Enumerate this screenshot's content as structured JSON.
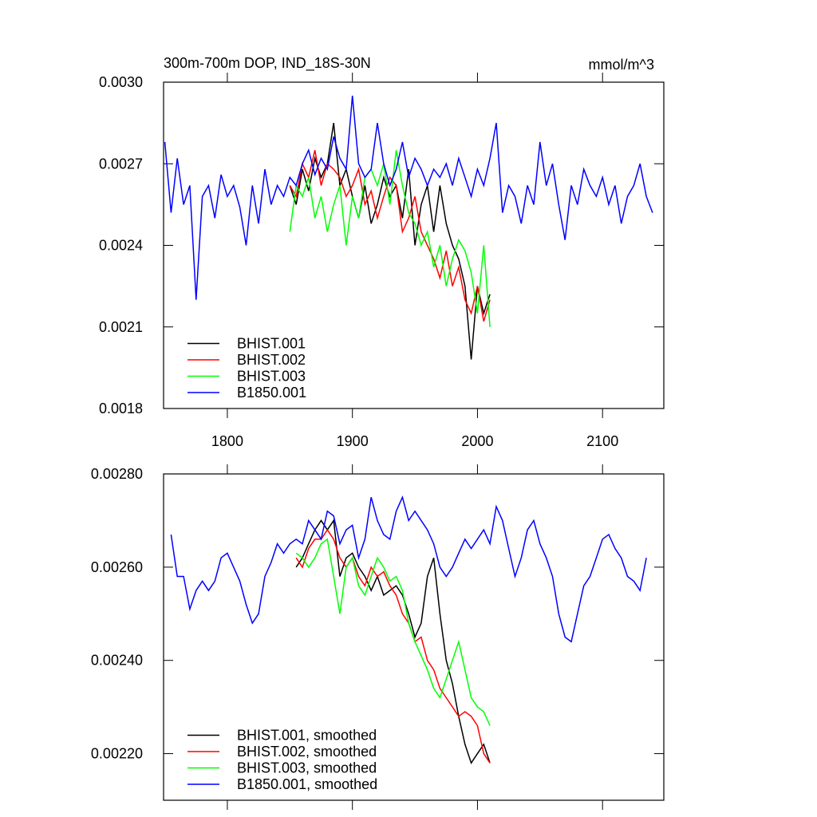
{
  "chart_data": [
    {
      "type": "line",
      "title": "300m-700m DOP, IND_18S-30N",
      "subtitle": "mmol/m^3",
      "xlim": [
        1749,
        2149
      ],
      "xticks": [
        1800,
        1900,
        2000,
        2100
      ],
      "ylim": [
        0.0018,
        0.003
      ],
      "yticks": [
        {
          "value": 0.0018,
          "label": "0.0018"
        },
        {
          "value": 0.0021,
          "label": "0.0021"
        },
        {
          "value": 0.0024,
          "label": "0.0024"
        },
        {
          "value": 0.0027,
          "label": "0.0027"
        },
        {
          "value": 0.003,
          "label": "0.0030"
        }
      ],
      "legend": "lower left",
      "series": [
        {
          "name": "BHIST.001",
          "color": "#000000",
          "x": [
            1850,
            1855,
            1860,
            1865,
            1870,
            1875,
            1880,
            1885,
            1890,
            1895,
            1900,
            1905,
            1910,
            1915,
            1920,
            1925,
            1930,
            1935,
            1940,
            1945,
            1950,
            1955,
            1960,
            1965,
            1970,
            1975,
            1980,
            1985,
            1990,
            1995,
            2000,
            2005,
            2010
          ],
          "values": [
            0.00262,
            0.00255,
            0.00268,
            0.0026,
            0.00272,
            0.00265,
            0.0027,
            0.00285,
            0.00262,
            0.00268,
            0.00258,
            0.0025,
            0.00262,
            0.00248,
            0.00255,
            0.00265,
            0.00258,
            0.00262,
            0.0025,
            0.00268,
            0.0024,
            0.00255,
            0.00262,
            0.00245,
            0.00262,
            0.00248,
            0.0024,
            0.00235,
            0.00225,
            0.00198,
            0.00225,
            0.00215,
            0.00222
          ]
        },
        {
          "name": "BHIST.002",
          "color": "#ff0000",
          "x": [
            1850,
            1855,
            1860,
            1865,
            1870,
            1875,
            1880,
            1885,
            1890,
            1895,
            1900,
            1905,
            1910,
            1915,
            1920,
            1925,
            1930,
            1935,
            1940,
            1945,
            1950,
            1955,
            1960,
            1965,
            1970,
            1975,
            1980,
            1985,
            1990,
            1995,
            2000,
            2005,
            2010
          ],
          "values": [
            0.00262,
            0.00258,
            0.0027,
            0.00265,
            0.00275,
            0.00262,
            0.0027,
            0.00268,
            0.00265,
            0.00258,
            0.00262,
            0.00268,
            0.00255,
            0.0026,
            0.0025,
            0.00258,
            0.00265,
            0.00262,
            0.00245,
            0.0025,
            0.00258,
            0.00245,
            0.0024,
            0.00235,
            0.00228,
            0.00238,
            0.00225,
            0.00232,
            0.0022,
            0.00215,
            0.00225,
            0.00212,
            0.0022
          ]
        },
        {
          "name": "BHIST.003",
          "color": "#00ff00",
          "x": [
            1850,
            1855,
            1860,
            1865,
            1870,
            1875,
            1880,
            1885,
            1890,
            1895,
            1900,
            1905,
            1910,
            1915,
            1920,
            1925,
            1930,
            1935,
            1940,
            1945,
            1950,
            1955,
            1960,
            1965,
            1970,
            1975,
            1980,
            1985,
            1990,
            1995,
            2000,
            2005,
            2010
          ],
          "values": [
            0.00245,
            0.00262,
            0.00258,
            0.00265,
            0.0025,
            0.00258,
            0.00245,
            0.00255,
            0.00262,
            0.0024,
            0.00258,
            0.0025,
            0.00265,
            0.00268,
            0.00262,
            0.0027,
            0.00255,
            0.00275,
            0.00262,
            0.00252,
            0.00248,
            0.0024,
            0.00245,
            0.00232,
            0.0024,
            0.00225,
            0.00235,
            0.00242,
            0.00238,
            0.0023,
            0.00215,
            0.0024,
            0.0021
          ]
        },
        {
          "name": "B1850.001",
          "color": "#0000ff",
          "x": [
            1750,
            1755,
            1760,
            1765,
            1770,
            1775,
            1780,
            1785,
            1790,
            1795,
            1800,
            1805,
            1810,
            1815,
            1820,
            1825,
            1830,
            1835,
            1840,
            1845,
            1850,
            1855,
            1860,
            1865,
            1870,
            1875,
            1880,
            1885,
            1890,
            1895,
            1900,
            1905,
            1910,
            1915,
            1920,
            1925,
            1930,
            1935,
            1940,
            1945,
            1950,
            1955,
            1960,
            1965,
            1970,
            1975,
            1980,
            1985,
            1990,
            1995,
            2000,
            2005,
            2010,
            2015,
            2020,
            2025,
            2030,
            2035,
            2040,
            2045,
            2050,
            2055,
            2060,
            2065,
            2070,
            2075,
            2080,
            2085,
            2090,
            2095,
            2100,
            2105,
            2110,
            2115,
            2120,
            2125,
            2130,
            2135,
            2140
          ],
          "values": [
            0.00278,
            0.00252,
            0.00272,
            0.00255,
            0.00262,
            0.0022,
            0.00258,
            0.00262,
            0.0025,
            0.00266,
            0.00258,
            0.00262,
            0.00254,
            0.0024,
            0.00262,
            0.00248,
            0.00268,
            0.00255,
            0.00262,
            0.00258,
            0.00265,
            0.00262,
            0.0027,
            0.00275,
            0.00266,
            0.00272,
            0.00268,
            0.0028,
            0.00272,
            0.00268,
            0.00295,
            0.0027,
            0.00265,
            0.00268,
            0.00285,
            0.0027,
            0.00262,
            0.00268,
            0.00278,
            0.00265,
            0.00272,
            0.00268,
            0.00262,
            0.00268,
            0.00265,
            0.0027,
            0.00262,
            0.00272,
            0.00265,
            0.00258,
            0.00268,
            0.00262,
            0.00272,
            0.00285,
            0.00252,
            0.00262,
            0.00258,
            0.00248,
            0.00262,
            0.00255,
            0.00278,
            0.00262,
            0.0027,
            0.00255,
            0.00242,
            0.00262,
            0.00255,
            0.00268,
            0.00262,
            0.00258,
            0.00265,
            0.00255,
            0.00262,
            0.00248,
            0.00258,
            0.00262,
            0.0027,
            0.00258,
            0.00252
          ]
        }
      ]
    },
    {
      "type": "line",
      "xlim": [
        1749,
        2149
      ],
      "xticks": [
        1800,
        1900,
        2000,
        2100
      ],
      "ylim": [
        0.0021,
        0.0028
      ],
      "yticks": [
        {
          "value": 0.0022,
          "label": "0.00220"
        },
        {
          "value": 0.0024,
          "label": "0.00240"
        },
        {
          "value": 0.0026,
          "label": "0.00260"
        },
        {
          "value": 0.0028,
          "label": "0.00280"
        }
      ],
      "legend": "lower left",
      "series": [
        {
          "name": "BHIST.001, smoothed",
          "color": "#000000",
          "x": [
            1855,
            1860,
            1865,
            1870,
            1875,
            1880,
            1885,
            1890,
            1895,
            1900,
            1905,
            1910,
            1915,
            1920,
            1925,
            1930,
            1935,
            1940,
            1945,
            1950,
            1955,
            1960,
            1965,
            1970,
            1975,
            1980,
            1985,
            1990,
            1995,
            2000,
            2005,
            2010
          ],
          "values": [
            0.0026,
            0.00262,
            0.00265,
            0.00268,
            0.0027,
            0.00268,
            0.0027,
            0.00258,
            0.00262,
            0.00263,
            0.0026,
            0.00258,
            0.00255,
            0.00258,
            0.00254,
            0.00255,
            0.00256,
            0.00254,
            0.0025,
            0.00245,
            0.00248,
            0.00258,
            0.00262,
            0.0025,
            0.0024,
            0.00235,
            0.00228,
            0.00222,
            0.00218,
            0.0022,
            0.00222,
            0.00218
          ]
        },
        {
          "name": "BHIST.002, smoothed",
          "color": "#ff0000",
          "x": [
            1855,
            1860,
            1865,
            1870,
            1875,
            1880,
            1885,
            1890,
            1895,
            1900,
            1905,
            1910,
            1915,
            1920,
            1925,
            1930,
            1935,
            1940,
            1945,
            1950,
            1955,
            1960,
            1965,
            1970,
            1975,
            1980,
            1985,
            1990,
            1995,
            2000,
            2005,
            2010
          ],
          "values": [
            0.00262,
            0.0026,
            0.00264,
            0.00266,
            0.00266,
            0.00268,
            0.00266,
            0.00262,
            0.0026,
            0.00262,
            0.00258,
            0.00256,
            0.0026,
            0.00258,
            0.00259,
            0.00256,
            0.00254,
            0.0025,
            0.00248,
            0.00244,
            0.00245,
            0.0024,
            0.00238,
            0.00234,
            0.00232,
            0.0023,
            0.00228,
            0.00229,
            0.00228,
            0.00226,
            0.0022,
            0.00218
          ]
        },
        {
          "name": "BHIST.003, smoothed",
          "color": "#00ff00",
          "x": [
            1855,
            1860,
            1865,
            1870,
            1875,
            1880,
            1885,
            1890,
            1895,
            1900,
            1905,
            1910,
            1915,
            1920,
            1925,
            1930,
            1935,
            1940,
            1945,
            1950,
            1955,
            1960,
            1965,
            1970,
            1975,
            1980,
            1985,
            1990,
            1995,
            2000,
            2005,
            2010
          ],
          "values": [
            0.00263,
            0.00262,
            0.0026,
            0.00262,
            0.00265,
            0.00266,
            0.00258,
            0.0025,
            0.0026,
            0.00262,
            0.00256,
            0.00254,
            0.00258,
            0.00262,
            0.0026,
            0.00257,
            0.00258,
            0.00255,
            0.00248,
            0.00244,
            0.00241,
            0.00238,
            0.00234,
            0.00232,
            0.00236,
            0.0024,
            0.00244,
            0.00238,
            0.00232,
            0.0023,
            0.00229,
            0.00226
          ]
        },
        {
          "name": "B1850.001, smoothed",
          "color": "#0000ff",
          "x": [
            1755,
            1760,
            1765,
            1770,
            1775,
            1780,
            1785,
            1790,
            1795,
            1800,
            1805,
            1810,
            1815,
            1820,
            1825,
            1830,
            1835,
            1840,
            1845,
            1850,
            1855,
            1860,
            1865,
            1870,
            1875,
            1880,
            1885,
            1890,
            1895,
            1900,
            1905,
            1910,
            1915,
            1920,
            1925,
            1930,
            1935,
            1940,
            1945,
            1950,
            1955,
            1960,
            1965,
            1970,
            1975,
            1980,
            1985,
            1990,
            1995,
            2000,
            2005,
            2010,
            2015,
            2020,
            2025,
            2030,
            2035,
            2040,
            2045,
            2050,
            2055,
            2060,
            2065,
            2070,
            2075,
            2080,
            2085,
            2090,
            2095,
            2100,
            2105,
            2110,
            2115,
            2120,
            2125,
            2130,
            2135
          ],
          "values": [
            0.00267,
            0.00258,
            0.00258,
            0.00251,
            0.00255,
            0.00257,
            0.00255,
            0.00257,
            0.00262,
            0.00263,
            0.0026,
            0.00257,
            0.00252,
            0.00248,
            0.0025,
            0.00258,
            0.00261,
            0.00265,
            0.00263,
            0.00265,
            0.00266,
            0.00265,
            0.0027,
            0.00268,
            0.00266,
            0.00272,
            0.00271,
            0.00265,
            0.00268,
            0.00269,
            0.00262,
            0.00266,
            0.00275,
            0.0027,
            0.00267,
            0.00266,
            0.00272,
            0.00275,
            0.0027,
            0.00272,
            0.0027,
            0.00268,
            0.00265,
            0.0026,
            0.00258,
            0.0026,
            0.00263,
            0.00266,
            0.00264,
            0.00266,
            0.00268,
            0.00265,
            0.00273,
            0.0027,
            0.00264,
            0.00258,
            0.00262,
            0.00268,
            0.0027,
            0.00265,
            0.00262,
            0.00258,
            0.0025,
            0.00245,
            0.00244,
            0.0025,
            0.00256,
            0.00258,
            0.00262,
            0.00266,
            0.00267,
            0.00264,
            0.00262,
            0.00258,
            0.00257,
            0.00255,
            0.00262
          ]
        }
      ]
    }
  ]
}
